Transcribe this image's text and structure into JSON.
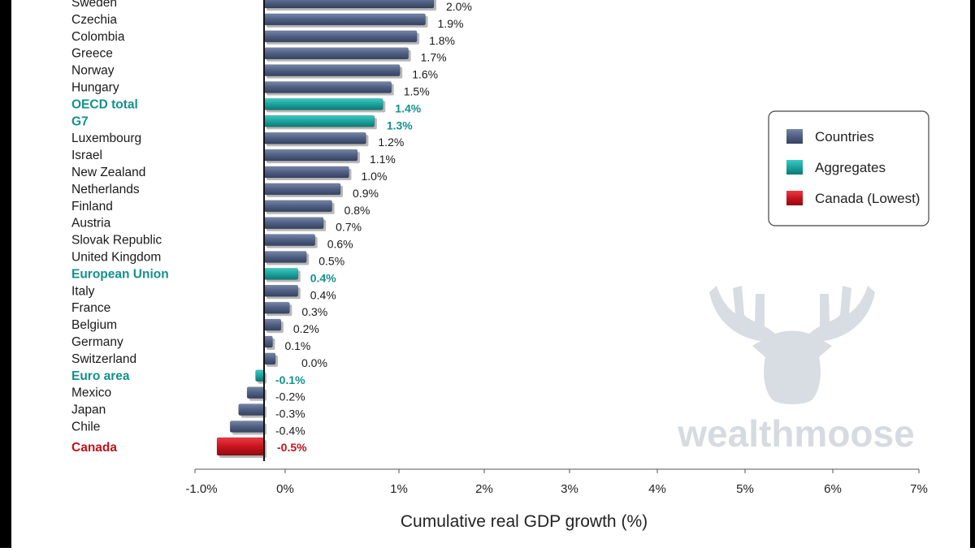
{
  "colors": {
    "country": "#4e5f84",
    "aggregate": "#1aa39e",
    "lowest": "#c8141e",
    "aggregate_text": "#14918c",
    "lowest_text": "#c0121a"
  },
  "chart_data": {
    "type": "bar",
    "orientation": "horizontal",
    "xlabel": "Cumulative real GDP growth (%)",
    "xlim": [
      -1.0,
      7.0
    ],
    "xticks": [
      "-1.0%",
      "0%",
      "1%",
      "2%",
      "3%",
      "4%",
      "5%",
      "6%",
      "7%"
    ],
    "grid": false,
    "legend_position": "right",
    "legend": [
      {
        "label": "Countries",
        "group": "country"
      },
      {
        "label": "Aggregates",
        "group": "aggregate"
      },
      {
        "label": "Canada (Lowest)",
        "group": "lowest"
      }
    ],
    "bars": [
      {
        "category": "Sweden",
        "value": 2.0,
        "label": "2.0%",
        "group": "country"
      },
      {
        "category": "Czechia",
        "value": 1.9,
        "label": "1.9%",
        "group": "country"
      },
      {
        "category": "Colombia",
        "value": 1.8,
        "label": "1.8%",
        "group": "country"
      },
      {
        "category": "Greece",
        "value": 1.7,
        "label": "1.7%",
        "group": "country"
      },
      {
        "category": "Norway",
        "value": 1.6,
        "label": "1.6%",
        "group": "country"
      },
      {
        "category": "Hungary",
        "value": 1.5,
        "label": "1.5%",
        "group": "country"
      },
      {
        "category": "OECD total",
        "value": 1.4,
        "label": "1.4%",
        "group": "aggregate"
      },
      {
        "category": "G7",
        "value": 1.3,
        "label": "1.3%",
        "group": "aggregate"
      },
      {
        "category": "Luxembourg",
        "value": 1.2,
        "label": "1.2%",
        "group": "country"
      },
      {
        "category": "Israel",
        "value": 1.1,
        "label": "1.1%",
        "group": "country"
      },
      {
        "category": "New Zealand",
        "value": 1.0,
        "label": "1.0%",
        "group": "country"
      },
      {
        "category": "Netherlands",
        "value": 0.9,
        "label": "0.9%",
        "group": "country"
      },
      {
        "category": "Finland",
        "value": 0.8,
        "label": "0.8%",
        "group": "country"
      },
      {
        "category": "Austria",
        "value": 0.7,
        "label": "0.7%",
        "group": "country"
      },
      {
        "category": "Slovak Republic",
        "value": 0.6,
        "label": "0.6%",
        "group": "country"
      },
      {
        "category": "United Kingdom",
        "value": 0.5,
        "label": "0.5%",
        "group": "country"
      },
      {
        "category": "European Union",
        "value": 0.4,
        "label": "0.4%",
        "group": "aggregate"
      },
      {
        "category": "Italy",
        "value": 0.4,
        "label": "0.4%",
        "group": "country"
      },
      {
        "category": "France",
        "value": 0.3,
        "label": "0.3%",
        "group": "country"
      },
      {
        "category": "Belgium",
        "value": 0.2,
        "label": "0.2%",
        "group": "country"
      },
      {
        "category": "Germany",
        "value": 0.1,
        "label": "0.1%",
        "group": "country"
      },
      {
        "category": "Switzerland",
        "value": 0.0,
        "label": "0.0%",
        "group": "country"
      },
      {
        "category": "Euro area",
        "value": -0.1,
        "label": "-0.1%",
        "group": "aggregate"
      },
      {
        "category": "Mexico",
        "value": -0.2,
        "label": "-0.2%",
        "group": "country"
      },
      {
        "category": "Japan",
        "value": -0.3,
        "label": "-0.3%",
        "group": "country"
      },
      {
        "category": "Chile",
        "value": -0.4,
        "label": "-0.4%",
        "group": "country"
      },
      {
        "category": "Canada",
        "value": -0.5,
        "label": "-0.5%",
        "group": "lowest"
      }
    ]
  },
  "watermark": {
    "brand": "wealthmoose",
    "icon": "moose-icon"
  }
}
